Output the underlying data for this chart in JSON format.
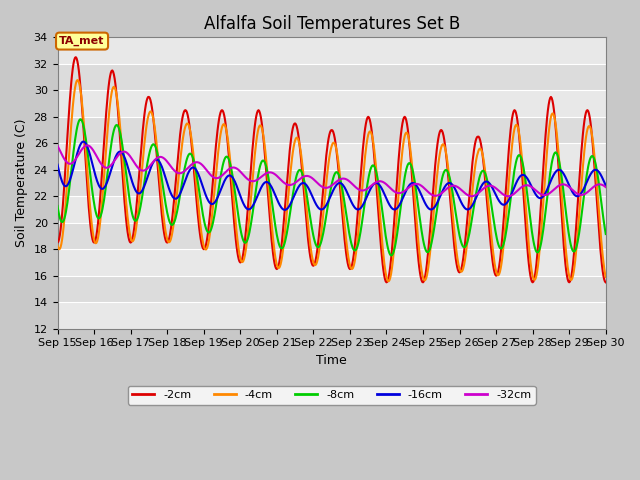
{
  "title": "Alfalfa Soil Temperatures Set B",
  "xlabel": "Time",
  "ylabel": "Soil Temperature (C)",
  "ylim": [
    12,
    34
  ],
  "start_day": 15,
  "end_day": 30,
  "annotation_text": "TA_met",
  "legend_labels": [
    "-2cm",
    "-4cm",
    "-8cm",
    "-16cm",
    "-32cm"
  ],
  "line_colors": [
    "#dd0000",
    "#ff8800",
    "#00cc00",
    "#0000dd",
    "#cc00cc"
  ],
  "background_color": "#dcdcdc",
  "grid_color": "#f0f0f0",
  "title_fontsize": 12,
  "axis_label_fontsize": 9,
  "tick_fontsize": 8,
  "figsize": [
    6.4,
    4.8
  ],
  "dpi": 100,
  "amp_envelope": [
    7.0,
    6.5,
    5.5,
    5.0,
    5.5,
    6.0,
    5.5,
    5.0,
    6.0,
    6.5,
    5.5,
    5.0,
    6.5,
    7.0,
    6.5
  ],
  "base_2cm": [
    25.5,
    25.0,
    24.0,
    23.5,
    23.0,
    22.5,
    22.0,
    22.0,
    22.0,
    21.5,
    21.5,
    21.5,
    22.0,
    22.5,
    22.0
  ],
  "base_4cm": [
    24.5,
    24.5,
    23.5,
    23.0,
    22.5,
    22.0,
    21.5,
    21.5,
    21.5,
    21.0,
    21.0,
    21.0,
    21.5,
    22.0,
    21.5
  ],
  "base_8cm": [
    24.0,
    24.0,
    23.0,
    22.5,
    22.0,
    21.5,
    21.0,
    21.0,
    21.0,
    21.0,
    21.0,
    21.0,
    21.5,
    21.5,
    21.5
  ],
  "amp_16cm": [
    1.8,
    1.5,
    1.4,
    1.3,
    1.2,
    1.1,
    1.0,
    1.0,
    1.0,
    1.0,
    1.0,
    1.0,
    1.0,
    1.0,
    1.0
  ],
  "base_16cm": [
    24.5,
    24.0,
    23.5,
    23.0,
    22.5,
    22.0,
    22.0,
    22.0,
    22.0,
    22.0,
    22.0,
    22.0,
    22.5,
    23.0,
    23.0
  ],
  "amp_32cm": [
    0.8,
    0.7,
    0.6,
    0.5,
    0.5,
    0.4,
    0.4,
    0.4,
    0.4,
    0.4,
    0.4,
    0.4,
    0.4,
    0.4,
    0.4
  ],
  "base_32cm": [
    25.2,
    24.8,
    24.5,
    24.2,
    23.8,
    23.5,
    23.2,
    23.0,
    22.8,
    22.6,
    22.4,
    22.4,
    22.4,
    22.5,
    22.5
  ]
}
